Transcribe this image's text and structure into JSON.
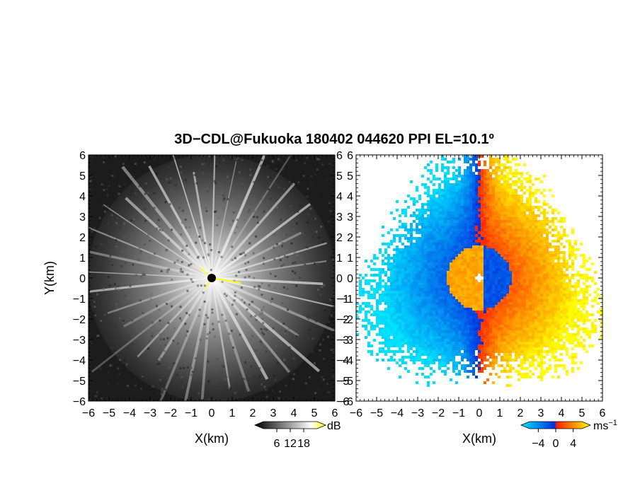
{
  "title": "3D−CDL@Fukuoka 180402 044620 PPI EL=10.1º",
  "colors": {
    "reflectivity_low": "#000000",
    "reflectivity_high": "#ffffff",
    "reflectivity_max": "#ffff00",
    "velocity_neg_far": "#00e5ff",
    "velocity_neg_near": "#0030e0",
    "velocity_pos_near": "#ff2000",
    "velocity_pos_far": "#ffff00"
  },
  "chart_data": [
    {
      "type": "heatmap",
      "name": "reflectivity-panel",
      "xlabel": "X(km)",
      "ylabel": "Y(km)",
      "xlim": [
        -6,
        6
      ],
      "ylim": [
        -6,
        6
      ],
      "x_ticks": [
        "−6",
        "−5",
        "−4",
        "−3",
        "−2",
        "−1",
        "0",
        "1",
        "2",
        "3",
        "4",
        "5",
        "6"
      ],
      "y_ticks": [
        "6",
        "5",
        "4",
        "3",
        "2",
        "1",
        "0",
        "−1",
        "−2",
        "−3",
        "−4",
        "−5",
        "−6"
      ],
      "colorbar": {
        "unit": "dB",
        "tick_labels": [
          "6",
          "12",
          "18"
        ],
        "ticks": [
          6,
          12,
          18
        ],
        "range": [
          0,
          24
        ]
      }
    },
    {
      "type": "heatmap",
      "name": "doppler-velocity-panel",
      "xlabel": "X(km)",
      "xlim": [
        -6,
        6
      ],
      "ylim": [
        -6,
        6
      ],
      "x_ticks": [
        "−6",
        "−5",
        "−4",
        "−3",
        "−2",
        "−1",
        "0",
        "1",
        "2",
        "3",
        "4",
        "5",
        "6"
      ],
      "y_ticks": [
        "6",
        "5",
        "4",
        "3",
        "2",
        "1",
        "0",
        "−1",
        "−2",
        "−3",
        "−4",
        "−5",
        "−6"
      ],
      "colorbar": {
        "unit": "ms",
        "unit_superscript": "−1",
        "tick_labels": [
          "−4",
          "0",
          "4"
        ],
        "ticks": [
          -4,
          0,
          4
        ],
        "range": [
          -6,
          6
        ]
      }
    }
  ]
}
